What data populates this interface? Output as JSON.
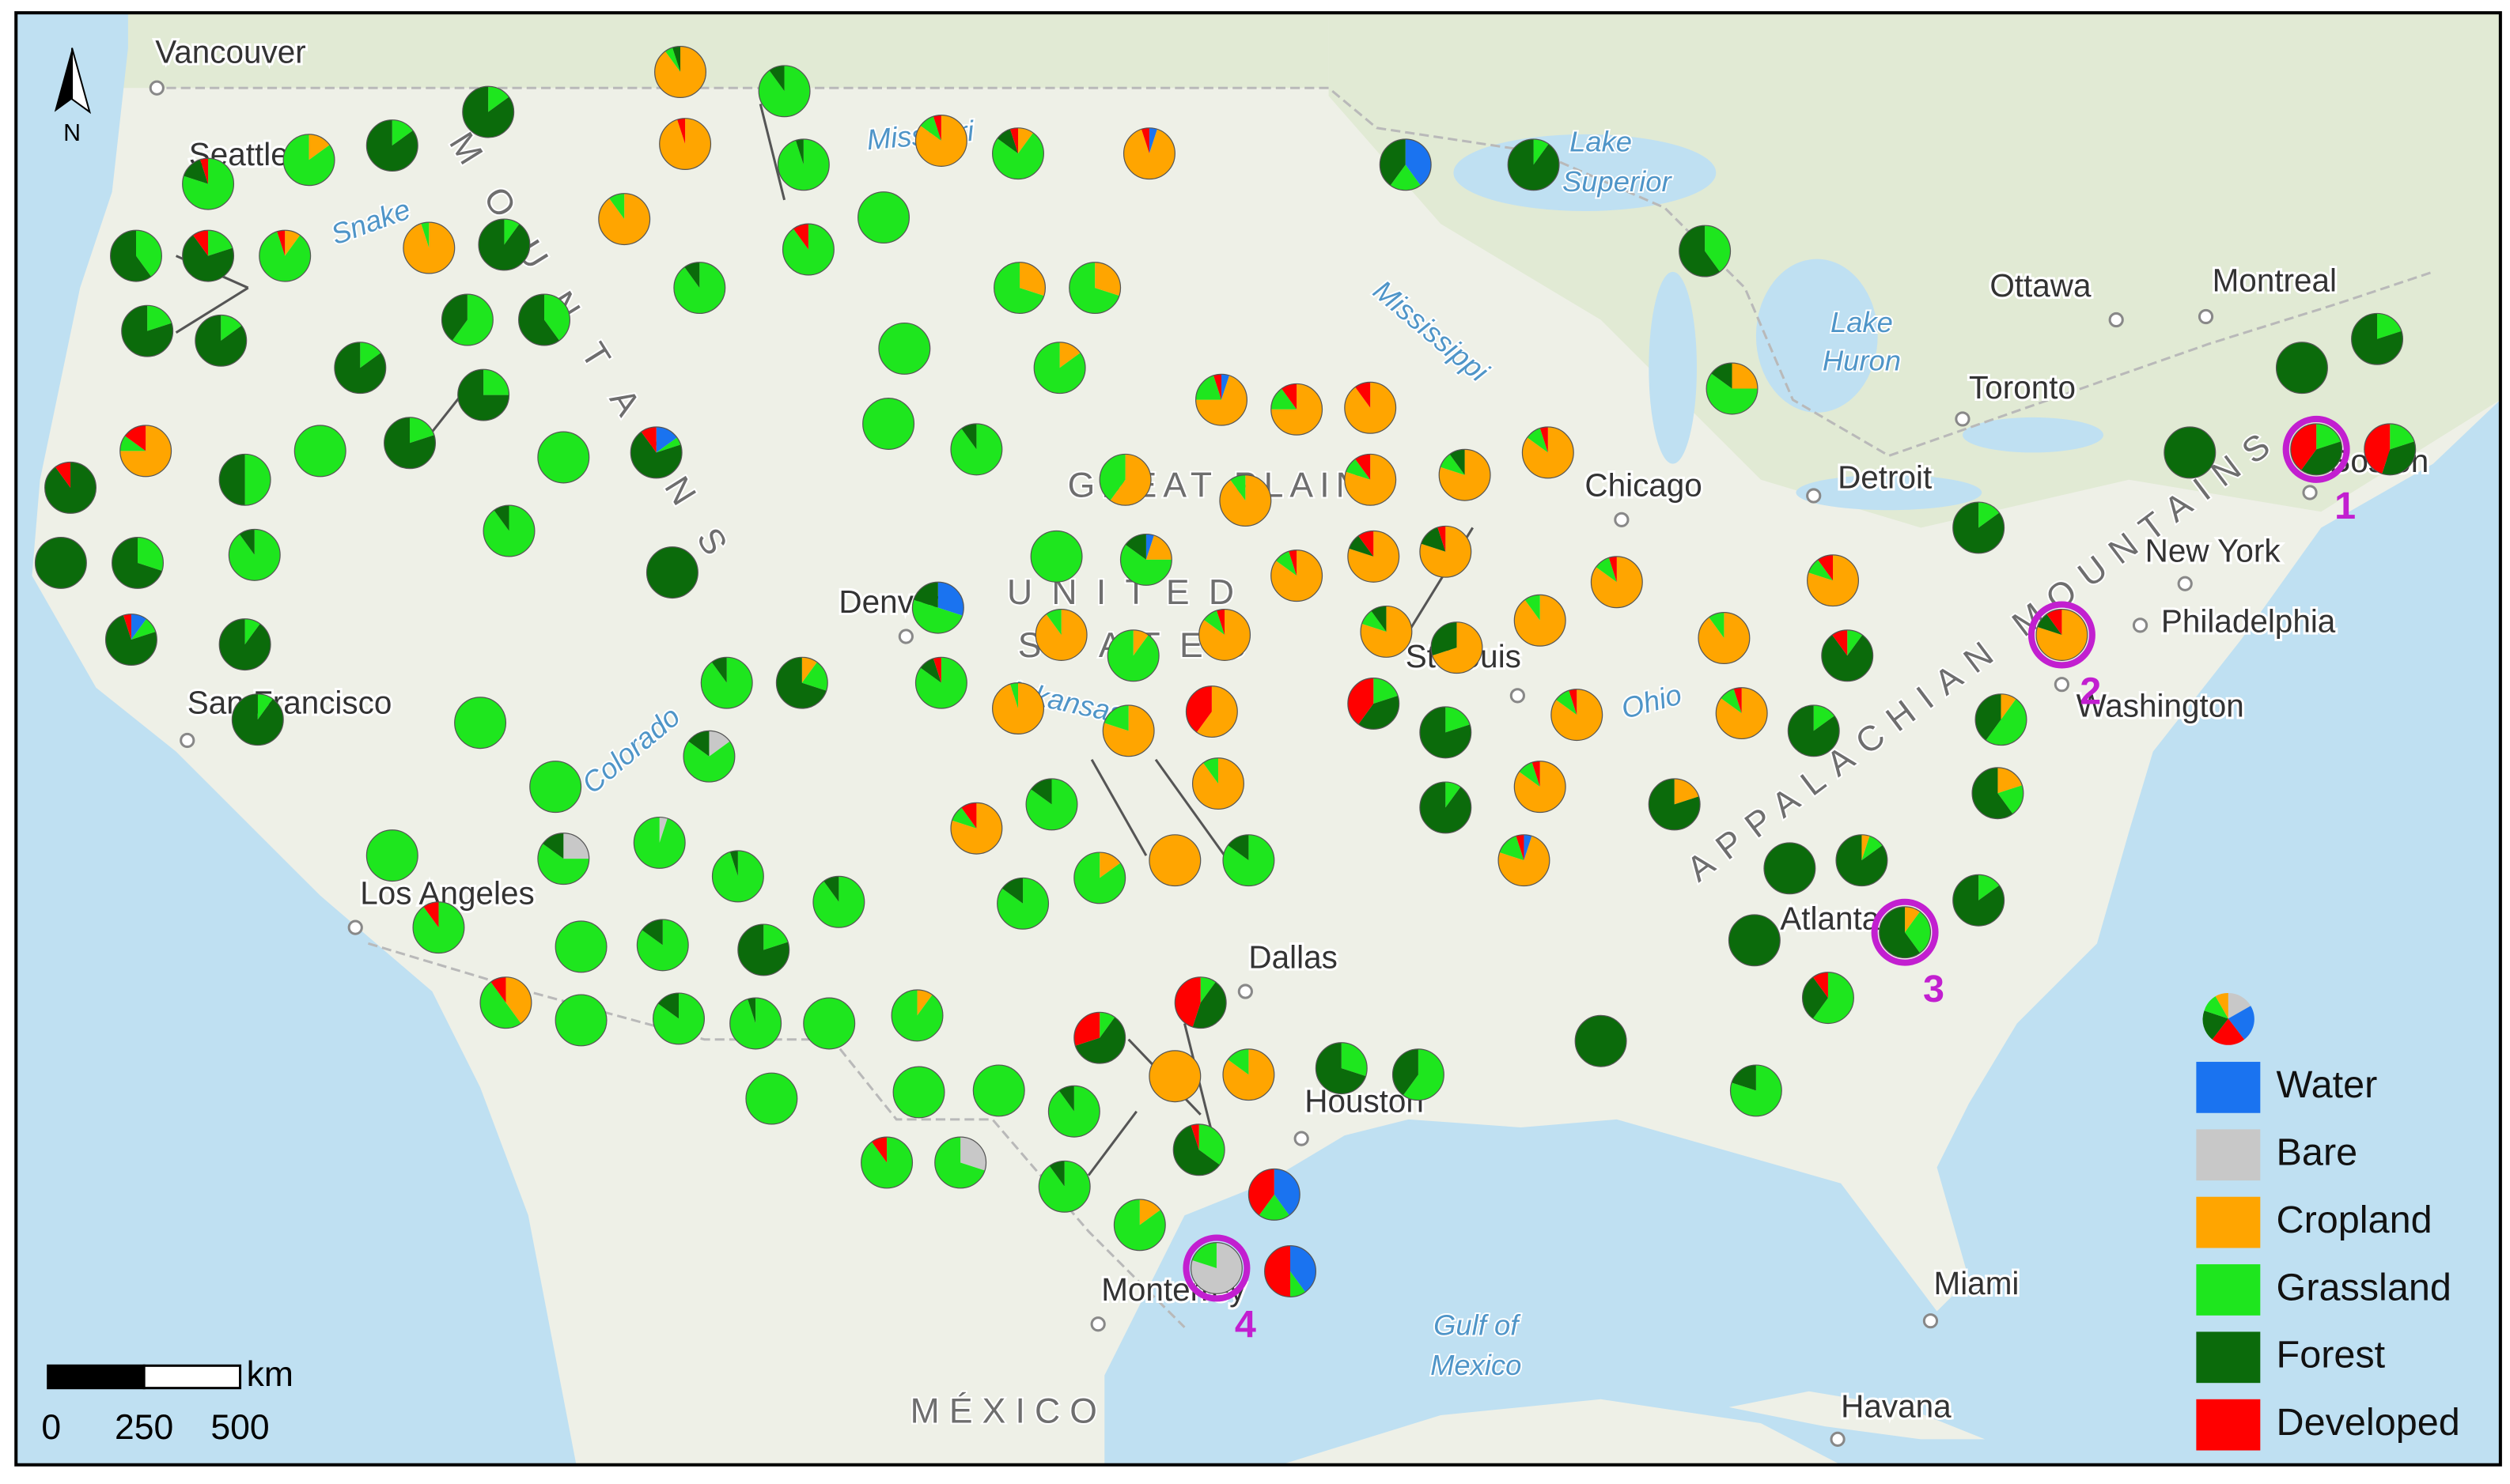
{
  "map": {
    "north_label": "N",
    "cities": [
      "Vancouver",
      "Seattle",
      "San Francisco",
      "Los Angeles",
      "Denver",
      "Dallas",
      "Houston",
      "Monterrey",
      "St Louis",
      "Chicago",
      "Detroit",
      "Toronto",
      "Ottawa",
      "Montreal",
      "Boston",
      "New York",
      "Philadelphia",
      "Washington",
      "Atlanta",
      "Miami",
      "Havana"
    ],
    "water_labels": [
      "Missouri",
      "Lake",
      "Superior",
      "Lake",
      "Huron",
      "Mississippi",
      "Ohio",
      "Arkansas",
      "Colorado",
      "Snake",
      "Gulf of",
      "Mexico"
    ],
    "region_labels": [
      "UNITED",
      "STATES",
      "GREAT PLAINS",
      "MOUNTAINS",
      "APPALACHIAN MOUNTAINS",
      "MÉXICO"
    ]
  },
  "legend": {
    "items": [
      {
        "name": "Water",
        "color": "#1a73f0"
      },
      {
        "name": "Bare",
        "color": "#c8c8c8"
      },
      {
        "name": "Cropland",
        "color": "#ffa500"
      },
      {
        "name": "Grassland",
        "color": "#1ee61e"
      },
      {
        "name": "Forest",
        "color": "#0b6b0b"
      },
      {
        "name": "Developed",
        "color": "#ff0000"
      }
    ]
  },
  "scale_bar": {
    "unit": "km",
    "ticks": [
      0,
      250,
      500
    ]
  },
  "pies": [
    [
      0,
      0,
      90,
      5,
      5,
      0
    ],
    [
      0,
      0,
      0,
      90,
      10,
      0
    ],
    [
      0,
      0,
      95,
      0,
      0,
      5
    ],
    [
      0,
      0,
      0,
      95,
      5,
      0
    ],
    [
      0,
      0,
      85,
      10,
      0,
      5
    ],
    [
      0,
      0,
      10,
      75,
      10,
      5
    ],
    [
      5,
      0,
      90,
      0,
      0,
      5
    ],
    [
      40,
      0,
      0,
      20,
      40,
      0
    ],
    [
      0,
      0,
      0,
      10,
      90,
      0
    ],
    [
      0,
      0,
      15,
      85,
      0,
      0
    ],
    [
      0,
      0,
      0,
      15,
      85,
      0
    ],
    [
      0,
      0,
      0,
      15,
      85,
      0
    ],
    [
      0,
      0,
      0,
      80,
      15,
      5
    ],
    [
      0,
      0,
      0,
      40,
      60,
      0
    ],
    [
      0,
      0,
      0,
      20,
      70,
      10
    ],
    [
      0,
      0,
      10,
      85,
      0,
      5
    ],
    [
      0,
      0,
      0,
      20,
      80,
      0
    ],
    [
      0,
      0,
      0,
      15,
      85,
      0
    ],
    [
      0,
      0,
      95,
      5,
      0,
      0
    ],
    [
      0,
      0,
      0,
      10,
      90,
      0
    ],
    [
      0,
      0,
      90,
      10,
      0,
      0
    ],
    [
      0,
      0,
      0,
      90,
      10,
      0
    ],
    [
      0,
      0,
      0,
      90,
      0,
      10
    ],
    [
      0,
      0,
      0,
      100,
      0,
      0
    ],
    [
      0,
      0,
      0,
      60,
      40,
      0
    ],
    [
      0,
      0,
      0,
      40,
      60,
      0
    ],
    [
      0,
      0,
      0,
      15,
      85,
      0
    ],
    [
      0,
      0,
      0,
      25,
      75,
      0
    ],
    [
      0,
      0,
      0,
      20,
      80,
      0
    ],
    [
      0,
      0,
      75,
      10,
      0,
      15
    ],
    [
      0,
      0,
      0,
      50,
      50,
      0
    ],
    [
      0,
      0,
      0,
      100,
      0,
      0
    ],
    [
      0,
      0,
      0,
      100,
      0,
      0
    ],
    [
      15,
      0,
      0,
      5,
      70,
      10
    ],
    [
      0,
      0,
      0,
      0,
      90,
      10
    ],
    [
      0,
      0,
      0,
      0,
      100,
      0
    ],
    [
      0,
      0,
      0,
      30,
      70,
      0
    ],
    [
      0,
      0,
      0,
      90,
      10,
      0
    ],
    [
      0,
      0,
      0,
      90,
      10,
      0
    ],
    [
      0,
      0,
      0,
      0,
      100,
      0
    ],
    [
      10,
      0,
      0,
      10,
      75,
      5
    ],
    [
      0,
      0,
      0,
      10,
      90,
      0
    ],
    [
      0,
      0,
      0,
      10,
      90,
      0
    ],
    [
      0,
      0,
      0,
      100,
      0,
      0
    ],
    [
      0,
      0,
      0,
      100,
      0,
      0
    ],
    [
      0,
      0,
      0,
      100,
      0,
      0
    ],
    [
      0,
      0,
      0,
      90,
      10,
      0
    ],
    [
      0,
      0,
      30,
      70,
      0,
      0
    ],
    [
      0,
      0,
      30,
      70,
      0,
      0
    ],
    [
      0,
      0,
      15,
      85,
      0,
      0
    ],
    [
      5,
      0,
      70,
      20,
      0,
      5
    ],
    [
      0,
      0,
      75,
      15,
      0,
      10
    ],
    [
      0,
      0,
      90,
      0,
      0,
      10
    ],
    [
      0,
      0,
      85,
      10,
      0,
      5
    ],
    [
      0,
      0,
      80,
      10,
      10,
      0
    ],
    [
      0,
      0,
      80,
      10,
      0,
      10
    ],
    [
      0,
      0,
      90,
      10,
      0,
      0
    ],
    [
      0,
      0,
      60,
      40,
      0,
      0
    ],
    [
      5,
      0,
      20,
      60,
      15,
      0
    ],
    [
      0,
      0,
      0,
      100,
      0,
      0
    ],
    [
      0,
      0,
      85,
      10,
      0,
      5
    ],
    [
      0,
      0,
      80,
      0,
      10,
      10
    ],
    [
      0,
      0,
      80,
      0,
      15,
      5
    ],
    [
      30,
      0,
      0,
      50,
      20,
      0
    ],
    [
      0,
      0,
      90,
      10,
      0,
      0
    ],
    [
      0,
      0,
      10,
      90,
      0,
      0
    ],
    [
      0,
      0,
      85,
      10,
      0,
      5
    ],
    [
      0,
      0,
      80,
      10,
      10,
      0
    ],
    [
      0,
      0,
      70,
      0,
      30,
      0
    ],
    [
      0,
      0,
      90,
      10,
      0,
      0
    ],
    [
      0,
      0,
      85,
      10,
      0,
      5
    ],
    [
      0,
      0,
      25,
      60,
      15,
      0
    ],
    [
      0,
      0,
      0,
      40,
      60,
      0
    ],
    [
      0,
      0,
      95,
      5,
      0,
      0
    ],
    [
      0,
      0,
      80,
      20,
      0,
      0
    ],
    [
      0,
      0,
      60,
      0,
      0,
      40
    ],
    [
      0,
      0,
      0,
      20,
      40,
      40
    ],
    [
      0,
      0,
      0,
      20,
      80,
      0
    ],
    [
      0,
      0,
      85,
      10,
      0,
      5
    ],
    [
      0,
      0,
      90,
      10,
      0,
      0
    ],
    [
      0,
      0,
      80,
      10,
      0,
      10
    ],
    [
      0,
      0,
      0,
      10,
      80,
      10
    ],
    [
      0,
      0,
      85,
      10,
      0,
      5
    ],
    [
      0,
      0,
      0,
      15,
      85,
      0
    ],
    [
      0,
      0,
      0,
      15,
      85,
      0
    ],
    [
      0,
      0,
      10,
      50,
      40,
      0
    ],
    [
      0,
      0,
      20,
      20,
      60,
      0
    ],
    [
      0,
      0,
      20,
      0,
      80,
      0
    ],
    [
      0,
      0,
      85,
      10,
      0,
      5
    ],
    [
      0,
      0,
      0,
      10,
      90,
      0
    ],
    [
      5,
      0,
      75,
      15,
      0,
      5
    ],
    [
      0,
      0,
      90,
      10,
      0,
      0
    ],
    [
      0,
      0,
      80,
      10,
      0,
      10
    ],
    [
      0,
      0,
      0,
      85,
      15,
      0
    ],
    [
      0,
      0,
      100,
      0,
      0,
      0
    ],
    [
      0,
      0,
      0,
      85,
      15,
      0
    ],
    [
      0,
      0,
      15,
      85,
      0,
      0
    ],
    [
      0,
      0,
      0,
      85,
      15,
      0
    ],
    [
      0,
      0,
      0,
      90,
      10,
      0
    ],
    [
      0,
      0,
      10,
      20,
      70,
      0
    ],
    [
      0,
      0,
      0,
      85,
      10,
      5
    ],
    [
      0,
      15,
      0,
      70,
      15,
      0
    ],
    [
      0,
      0,
      0,
      100,
      0,
      0
    ],
    [
      0,
      5,
      0,
      95,
      0,
      0
    ],
    [
      0,
      0,
      0,
      95,
      5,
      0
    ],
    [
      0,
      0,
      0,
      90,
      10,
      0
    ],
    [
      0,
      25,
      0,
      60,
      15,
      0
    ],
    [
      0,
      0,
      0,
      100,
      0,
      0
    ],
    [
      0,
      0,
      0,
      90,
      0,
      10
    ],
    [
      0,
      0,
      0,
      100,
      0,
      0
    ],
    [
      0,
      0,
      0,
      85,
      15,
      0
    ],
    [
      0,
      0,
      0,
      20,
      80,
      0
    ],
    [
      0,
      0,
      40,
      50,
      0,
      10
    ],
    [
      0,
      0,
      0,
      100,
      0,
      0
    ],
    [
      0,
      0,
      0,
      85,
      15,
      0
    ],
    [
      0,
      0,
      0,
      95,
      5,
      0
    ],
    [
      0,
      0,
      0,
      100,
      0,
      0
    ],
    [
      0,
      0,
      10,
      90,
      0,
      0
    ],
    [
      0,
      0,
      0,
      100,
      0,
      0
    ],
    [
      0,
      0,
      0,
      100,
      0,
      0
    ],
    [
      0,
      0,
      0,
      100,
      0,
      0
    ],
    [
      0,
      0,
      0,
      90,
      10,
      0
    ],
    [
      0,
      0,
      0,
      90,
      0,
      10
    ],
    [
      0,
      30,
      0,
      70,
      0,
      0
    ],
    [
      0,
      0,
      0,
      90,
      10,
      0
    ],
    [
      0,
      0,
      15,
      85,
      0,
      0
    ],
    [
      0,
      0,
      0,
      10,
      60,
      30
    ],
    [
      0,
      0,
      0,
      10,
      45,
      45
    ],
    [
      0,
      0,
      100,
      0,
      0,
      0
    ],
    [
      0,
      0,
      85,
      15,
      0,
      0
    ],
    [
      0,
      0,
      0,
      30,
      70,
      0
    ],
    [
      0,
      0,
      0,
      60,
      40,
      0
    ],
    [
      0,
      0,
      0,
      35,
      60,
      5
    ],
    [
      40,
      0,
      0,
      20,
      0,
      40
    ],
    [
      40,
      0,
      0,
      10,
      0,
      50
    ],
    [
      0,
      0,
      0,
      0,
      100,
      0
    ],
    [
      0,
      0,
      5,
      10,
      85,
      0
    ],
    [
      0,
      0,
      0,
      0,
      100,
      0
    ],
    [
      0,
      0,
      0,
      60,
      30,
      10
    ],
    [
      0,
      0,
      0,
      15,
      85,
      0
    ],
    [
      0,
      0,
      0,
      0,
      100,
      0
    ],
    [
      0,
      0,
      0,
      80,
      20,
      0
    ],
    [
      0,
      0,
      0,
      0,
      100,
      0
    ],
    [
      0,
      0,
      0,
      0,
      100,
      0
    ],
    [
      0,
      0,
      0,
      20,
      80,
      0
    ],
    [
      0,
      0,
      0,
      20,
      35,
      45
    ]
  ],
  "highlighted_sites": [
    {
      "label": "1",
      "shares": [
        0,
        0,
        0,
        20,
        40,
        40
      ]
    },
    {
      "label": "2",
      "shares": [
        0,
        0,
        80,
        0,
        10,
        10
      ]
    },
    {
      "label": "3",
      "shares": [
        0,
        0,
        10,
        30,
        60,
        0
      ]
    },
    {
      "label": "4",
      "shares": [
        0,
        80,
        0,
        20,
        0,
        0
      ]
    }
  ]
}
